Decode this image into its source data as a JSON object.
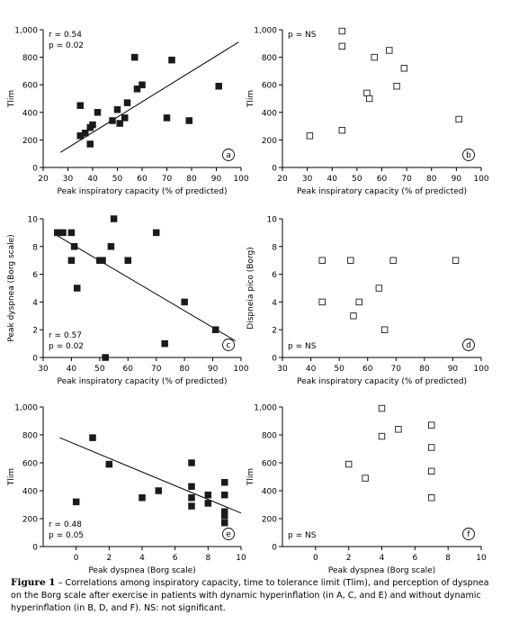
{
  "caption": {
    "figure_label": "Figure 1",
    "text": " – Correlations among inspiratory capacity, time to tolerance limit (Tlim), and perception of dyspnea on the Borg scale after exercise in patients with dynamic hyperinflation (in A, C, and E) and without dynamic hyperinflation (in B, D, and F). NS: not significant."
  },
  "chart_data": [
    {
      "type": "scatter",
      "panel": "a",
      "marker": "filled-square",
      "ylabel": "Tlim",
      "xlabel": "Peak inspiratory capacity (% of predicted)",
      "xlim": [
        20,
        100
      ],
      "ylim": [
        0,
        1000
      ],
      "xticks": [
        "20",
        "30",
        "40",
        "50",
        "60",
        "70",
        "80",
        "90",
        "100"
      ],
      "yticks": [
        "0",
        "200",
        "400",
        "600",
        "800",
        "1,000"
      ],
      "stats": [
        "r = 0.54",
        "p = 0.02"
      ],
      "fit_line": {
        "x": [
          27,
          99
        ],
        "y": [
          110,
          910
        ]
      },
      "points": [
        [
          35,
          450
        ],
        [
          35,
          230
        ],
        [
          37,
          250
        ],
        [
          39,
          290
        ],
        [
          39,
          170
        ],
        [
          40,
          310
        ],
        [
          42,
          400
        ],
        [
          48,
          340
        ],
        [
          50,
          420
        ],
        [
          51,
          320
        ],
        [
          53,
          360
        ],
        [
          54,
          470
        ],
        [
          57,
          800
        ],
        [
          58,
          570
        ],
        [
          60,
          600
        ],
        [
          70,
          360
        ],
        [
          72,
          780
        ],
        [
          79,
          340
        ],
        [
          91,
          590
        ]
      ]
    },
    {
      "type": "scatter",
      "panel": "b",
      "marker": "open-square",
      "ylabel": "Tlim",
      "xlabel": "Peak inspiratory capacity (% of predicted)",
      "xlim": [
        20,
        100
      ],
      "ylim": [
        0,
        1000
      ],
      "xticks": [
        "20",
        "30",
        "40",
        "50",
        "60",
        "70",
        "80",
        "90",
        "100"
      ],
      "yticks": [
        "0",
        "200",
        "400",
        "600",
        "800",
        "1,000"
      ],
      "stats": [
        "p = NS"
      ],
      "points": [
        [
          31,
          230
        ],
        [
          44,
          990
        ],
        [
          44,
          880
        ],
        [
          44,
          270
        ],
        [
          54,
          540
        ],
        [
          55,
          500
        ],
        [
          57,
          800
        ],
        [
          63,
          850
        ],
        [
          66,
          590
        ],
        [
          69,
          720
        ],
        [
          91,
          350
        ]
      ]
    },
    {
      "type": "scatter",
      "panel": "c",
      "marker": "filled-square",
      "ylabel": "Peak dyspnea (Borg scale)",
      "xlabel": "Peak inspiratory capacity (% of predicted)",
      "xlim": [
        30,
        100
      ],
      "ylim": [
        0,
        10
      ],
      "xticks": [
        "30",
        "40",
        "50",
        "60",
        "70",
        "80",
        "90",
        "100"
      ],
      "yticks": [
        "0",
        "2",
        "4",
        "6",
        "8",
        "10"
      ],
      "stats": [
        "r = 0.57",
        "p = 0.02"
      ],
      "fit_line": {
        "x": [
          34,
          98
        ],
        "y": [
          8.9,
          1.2
        ]
      },
      "points": [
        [
          35,
          9
        ],
        [
          37,
          9
        ],
        [
          40,
          9
        ],
        [
          40,
          7
        ],
        [
          41,
          8
        ],
        [
          42,
          5
        ],
        [
          50,
          7
        ],
        [
          51,
          7
        ],
        [
          52,
          0
        ],
        [
          54,
          8
        ],
        [
          55,
          10
        ],
        [
          60,
          7
        ],
        [
          70,
          9
        ],
        [
          73,
          1
        ],
        [
          80,
          4
        ],
        [
          91,
          2
        ]
      ]
    },
    {
      "type": "scatter",
      "panel": "d",
      "marker": "open-square",
      "ylabel": "Dispneia pico (Borg)",
      "xlabel": "Peak inspiratory capacity (% of predicted)",
      "xlim": [
        30,
        100
      ],
      "ylim": [
        0,
        10
      ],
      "xticks": [
        "30",
        "40",
        "50",
        "60",
        "70",
        "80",
        "90",
        "100"
      ],
      "yticks": [
        "0",
        "2",
        "4",
        "6",
        "8",
        "10"
      ],
      "stats": [
        "p = NS"
      ],
      "points": [
        [
          44,
          7
        ],
        [
          44,
          4
        ],
        [
          54,
          7
        ],
        [
          55,
          3
        ],
        [
          57,
          4
        ],
        [
          64,
          5
        ],
        [
          66,
          2
        ],
        [
          69,
          7
        ],
        [
          91,
          7
        ]
      ]
    },
    {
      "type": "scatter",
      "panel": "e",
      "marker": "filled-square",
      "ylabel": "Tlim",
      "xlabel": "Peak dyspnea (Borg scale)",
      "xlim": [
        -2,
        10
      ],
      "ylim": [
        0,
        1000
      ],
      "xticks": [
        "0",
        "2",
        "4",
        "6",
        "8",
        "10"
      ],
      "yticks": [
        "0",
        "200",
        "400",
        "600",
        "800",
        "1,000"
      ],
      "stats": [
        "r = 0.48",
        "p = 0.05"
      ],
      "fit_line": {
        "x": [
          -1,
          10
        ],
        "y": [
          780,
          240
        ]
      },
      "points": [
        [
          0,
          320
        ],
        [
          1,
          780
        ],
        [
          2,
          590
        ],
        [
          4,
          350
        ],
        [
          5,
          400
        ],
        [
          7,
          600
        ],
        [
          7,
          430
        ],
        [
          7,
          350
        ],
        [
          7,
          290
        ],
        [
          8,
          370
        ],
        [
          8,
          310
        ],
        [
          9,
          460
        ],
        [
          9,
          370
        ],
        [
          9,
          250
        ],
        [
          9,
          220
        ],
        [
          9,
          170
        ]
      ]
    },
    {
      "type": "scatter",
      "panel": "f",
      "marker": "open-square",
      "ylabel": "Tlim",
      "xlabel": "Peak dyspnea (Borg scale)",
      "xlim": [
        -2,
        10
      ],
      "ylim": [
        0,
        1000
      ],
      "xticks": [
        "0",
        "2",
        "4",
        "6",
        "8",
        "10"
      ],
      "yticks": [
        "0",
        "200",
        "400",
        "600",
        "800",
        "1,000"
      ],
      "stats": [
        "p = NS"
      ],
      "points": [
        [
          2,
          590
        ],
        [
          3,
          490
        ],
        [
          4,
          990
        ],
        [
          4,
          790
        ],
        [
          5,
          840
        ],
        [
          7,
          870
        ],
        [
          7,
          710
        ],
        [
          7,
          540
        ],
        [
          7,
          350
        ]
      ]
    }
  ]
}
